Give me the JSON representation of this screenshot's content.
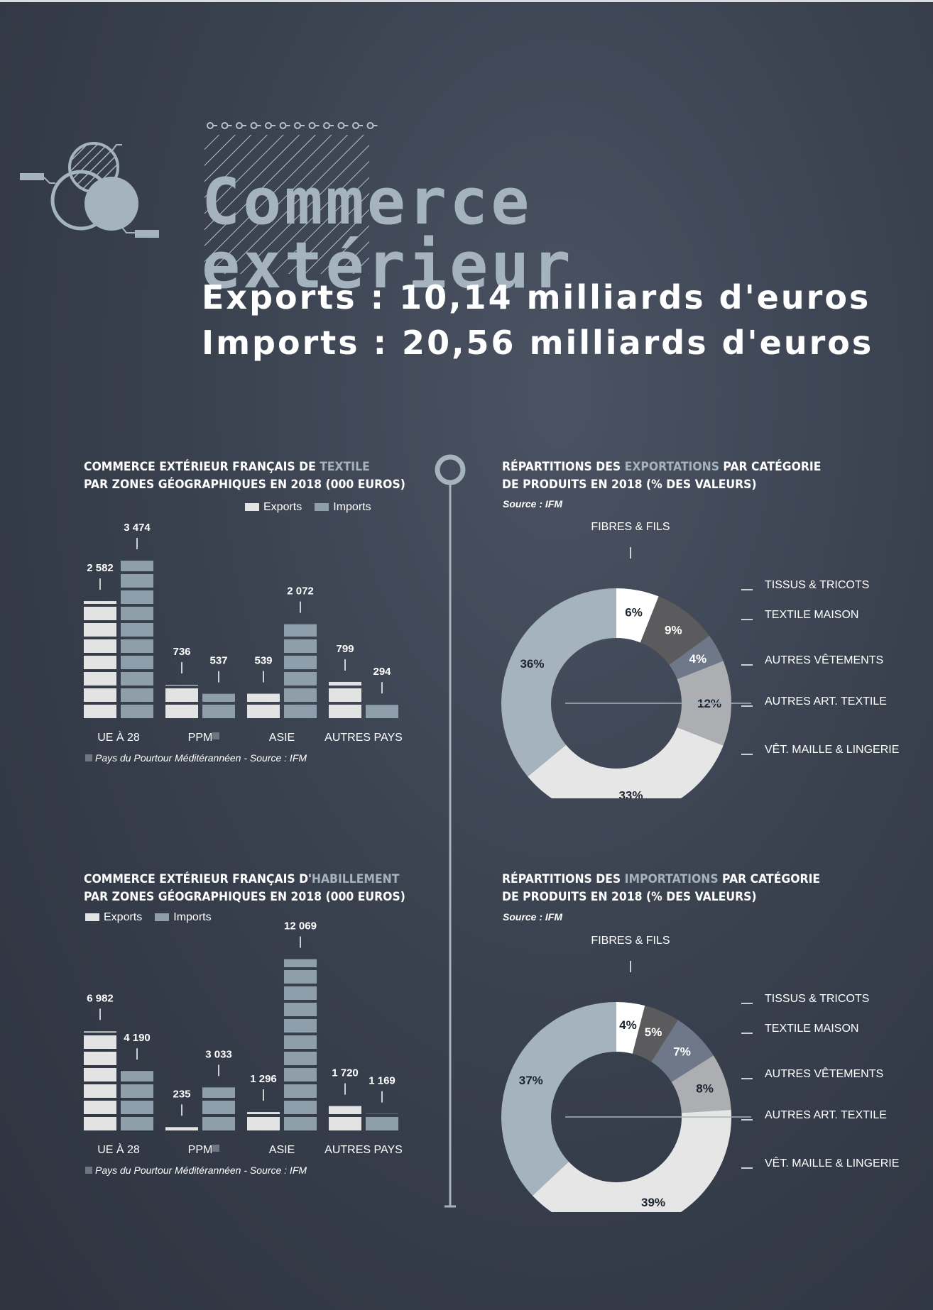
{
  "header": {
    "title": "Commerce extérieur",
    "exports_line": "Exports : 10,14 milliards d'euros",
    "imports_line": "Imports : 20,56 milliards d'euros"
  },
  "colors": {
    "exports": "#e3e3e3",
    "imports": "#8e9eaa",
    "accent": "#a4b3be"
  },
  "chart_data": [
    {
      "id": "textile_bars",
      "type": "bar",
      "title_prefix": "COMMERCE EXTÉRIEUR FRANÇAIS DE ",
      "title_highlight": "TEXTILE",
      "title_line2": "PAR ZONES GÉOGRAPHIQUES EN 2018 (000 EUROS)",
      "categories": [
        "UE À 28",
        "PPM",
        "ASIE",
        "AUTRES PAYS"
      ],
      "series": [
        {
          "name": "Exports",
          "values": [
            2582,
            736,
            539,
            799
          ],
          "labels": [
            "2 582",
            "736",
            "539",
            "799"
          ]
        },
        {
          "name": "Imports",
          "values": [
            3474,
            537,
            2072,
            294
          ],
          "labels": [
            "3 474",
            "537",
            "2 072",
            "294"
          ]
        }
      ],
      "footnote": "Pays du Pourtour Méditérannéen - Source : IFM",
      "ylim": [
        0,
        3600
      ]
    },
    {
      "id": "habillement_bars",
      "type": "bar",
      "title_prefix": "COMMERCE EXTÉRIEUR FRANÇAIS D'",
      "title_highlight": "HABILLEMENT",
      "title_line2": "PAR ZONES GÉOGRAPHIQUES EN 2018 (000 EUROS)",
      "categories": [
        "UE À 28",
        "PPM",
        "ASIE",
        "AUTRES PAYS"
      ],
      "series": [
        {
          "name": "Exports",
          "values": [
            6982,
            235,
            1296,
            1720
          ],
          "labels": [
            "6 982",
            "235",
            "1 296",
            "1 720"
          ]
        },
        {
          "name": "Imports",
          "values": [
            4190,
            3033,
            12069,
            1169
          ],
          "labels": [
            "4 190",
            "3 033",
            "12 069",
            "1 169"
          ]
        }
      ],
      "footnote": "Pays du Pourtour Méditérannéen - Source : IFM",
      "ylim": [
        0,
        12500
      ]
    },
    {
      "id": "exports_donut",
      "type": "pie",
      "title_prefix": "RÉPARTITIONS DES ",
      "title_highlight": "EXPORTATIONS",
      "title_suffix": " PAR CATÉGORIE",
      "title_line2": "DE PRODUITS EN 2018 (% DES VALEURS)",
      "source": "Source : IFM",
      "categories": [
        "FIBRES & FILS",
        "TISSUS & TRICOTS",
        "TEXTILE MAISON",
        "AUTRES VÊTEMENTS",
        "VÊT. MAILLE & LINGERIE",
        "AUTRES ART. TEXTILE"
      ],
      "values": [
        6,
        9,
        4,
        12,
        33,
        36
      ],
      "labels": [
        "6%",
        "9%",
        "4%",
        "12%",
        "33%",
        "36%"
      ],
      "legend_order": [
        "TISSUS & TRICOTS",
        "TEXTILE MAISON",
        "AUTRES VÊTEMENTS",
        "AUTRES ART. TEXTILE",
        "VÊT. MAILLE & LINGERIE"
      ],
      "slice_colors": [
        "#ffffff",
        "#5b5b5d",
        "#6e7888",
        "#acaeb2",
        "#e6e6e6",
        "#a4b3be"
      ]
    },
    {
      "id": "imports_donut",
      "type": "pie",
      "title_prefix": "RÉPARTITIONS DES ",
      "title_highlight": "IMPORTATIONS",
      "title_suffix": " PAR CATÉGORIE",
      "title_line2": "DE PRODUITS EN 2018 (% DES VALEURS)",
      "source": "Source : IFM",
      "categories": [
        "FIBRES & FILS",
        "TISSUS & TRICOTS",
        "TEXTILE MAISON",
        "AUTRES VÊTEMENTS",
        "VÊT. MAILLE & LINGERIE",
        "AUTRES ART. TEXTILE"
      ],
      "values": [
        4,
        5,
        7,
        8,
        39,
        37
      ],
      "labels": [
        "4%",
        "5%",
        "7%",
        "8%",
        "39%",
        "37%"
      ],
      "legend_order": [
        "TISSUS & TRICOTS",
        "TEXTILE MAISON",
        "AUTRES VÊTEMENTS",
        "AUTRES ART. TEXTILE",
        "VÊT. MAILLE & LINGERIE"
      ],
      "slice_colors": [
        "#ffffff",
        "#5b5b5d",
        "#6e7888",
        "#acaeb2",
        "#e6e6e6",
        "#a4b3be"
      ]
    }
  ]
}
